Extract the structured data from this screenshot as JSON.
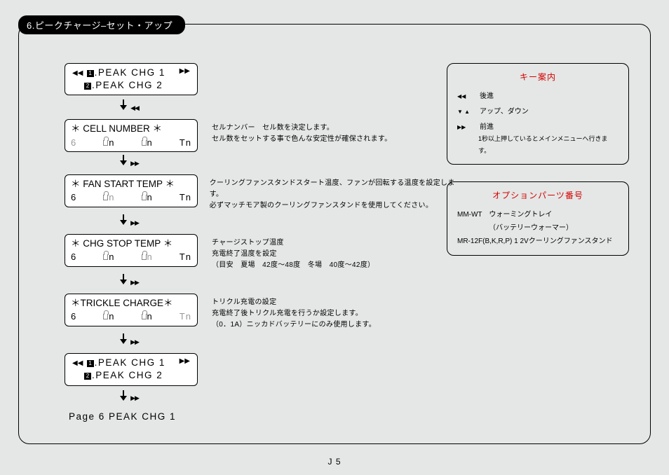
{
  "section_title": "6.ピークチャージ–セット・アップ",
  "page_number": "J 5",
  "menu_top": {
    "line1_prefix_icon": "◀◀",
    "line1_num": "1",
    "line1_text": ".PEAK CHG 1",
    "line1_suffix_icon": "▶▶",
    "line2_num": "2",
    "line2_text": ".PEAK CHG 2"
  },
  "steps": [
    {
      "title": "＊ CELL NUMBER ＊",
      "row2": {
        "c1": "6",
        "c2": "n",
        "c3": "n",
        "c4": "Tn"
      },
      "gray_cells": [
        "c1"
      ],
      "arrow_icon": "◀◀",
      "desc": [
        "セルナンバー　セル数を決定します。",
        "セル数をセットする事で色んな安定性が確保されます。"
      ]
    },
    {
      "title": "＊ FAN START TEMP ＊",
      "row2": {
        "c1": "6",
        "c2": "n",
        "c3": "n",
        "c4": "Tn"
      },
      "gray_cells": [
        "c2"
      ],
      "arrow_icon": "▶▶",
      "desc": [
        "クーリングファンスタンドスタート温度、ファンが回転する温度を設定します。",
        "必ずマッチモア製のクーリングファンスタンドを使用してください。"
      ]
    },
    {
      "title": "＊ CHG STOP TEMP ＊",
      "row2": {
        "c1": "6",
        "c2": "n",
        "c3": "n",
        "c4": "Tn"
      },
      "gray_cells": [
        "c3"
      ],
      "arrow_icon": "▶▶",
      "desc": [
        "チャージストップ温度",
        "充電終了温度を設定",
        "（目安　夏場　42度〜48度　冬場　40度〜42度）"
      ]
    },
    {
      "title": "＊TRICKLE CHARGE＊",
      "row2": {
        "c1": "6",
        "c2": "n",
        "c3": "n",
        "c4": "Tn"
      },
      "gray_cells": [
        "c4"
      ],
      "arrow_icon": "▶▶",
      "desc": [
        "トリクル充電の設定",
        "充電終了後トリクル充電を行うか設定します。",
        "（0．1A）ニッカドバッテリーにのみ使用します。"
      ]
    }
  ],
  "menu_bottom": {
    "line1_prefix_icon": "◀◀",
    "line1_num": "1",
    "line1_text": ".PEAK CHG 1",
    "line1_suffix_icon": "▶▶",
    "line2_num": "2",
    "line2_text": ".PEAK CHG 2"
  },
  "bottom_arrow_icon": "▶▶",
  "bottom_label": "Page 6 PEAK CHG 1",
  "key_guide": {
    "title": "キー案内",
    "rows": [
      {
        "glyph": "◀◀",
        "text": "後進"
      },
      {
        "glyph": "▼ ▲",
        "text": "アップ、ダウン"
      },
      {
        "glyph": "▶▶",
        "text": "前進"
      }
    ],
    "note": "1秒以上押しているとメインメニューへ行きます。"
  },
  "option_parts": {
    "title": "オプションパーツ番号",
    "lines": [
      "MM-WT　ウォーミングトレイ",
      "　　　　　（バッテリーウォーマー）",
      "MR-12F(B,K,R,P) 1 2Vクーリングファンスタンド"
    ]
  }
}
